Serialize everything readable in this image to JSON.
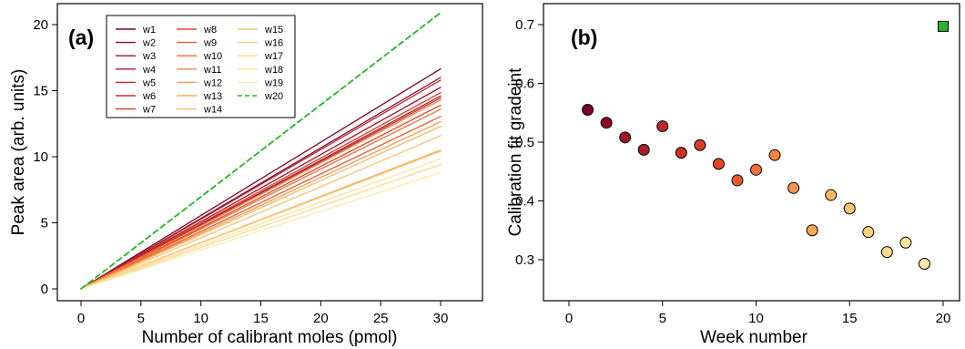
{
  "colors": {
    "w1": "#7a0127",
    "w2": "#8b0a28",
    "w3": "#9c1429",
    "w4": "#ad1d2b",
    "w5": "#bd262c",
    "w6": "#cc302a",
    "w7": "#d83b28",
    "w8": "#e24526",
    "w9": "#e85a2c",
    "w10": "#ed6f36",
    "w11": "#f18441",
    "w12": "#f4974c",
    "w13": "#f6a757",
    "w14": "#f8b663",
    "w15": "#f9c372",
    "w16": "#fbcf81",
    "w17": "#fcd990",
    "w18": "#fde29d",
    "w19": "#fee9aa",
    "w20": "#22b822"
  },
  "chart_data": [
    {
      "type": "line",
      "panel_tag": "(a)",
      "xlabel": "Number of calibrant moles  (pmol)",
      "ylabel": "Peak area  (arb. units)",
      "xlim": [
        0,
        30
      ],
      "ylim": [
        0,
        20
      ],
      "xticks": [
        0,
        5,
        10,
        15,
        20,
        25,
        30
      ],
      "yticks": [
        0,
        5,
        10,
        15,
        20
      ],
      "grid": false,
      "legend_position": "top-left",
      "series": [
        {
          "name": "w1",
          "x": [
            0,
            30
          ],
          "y": [
            0,
            16.65
          ],
          "style": "solid"
        },
        {
          "name": "w2",
          "x": [
            0,
            30
          ],
          "y": [
            0,
            16.0
          ],
          "style": "solid"
        },
        {
          "name": "w3",
          "x": [
            0,
            30
          ],
          "y": [
            0,
            15.25
          ],
          "style": "solid"
        },
        {
          "name": "w4",
          "x": [
            0,
            30
          ],
          "y": [
            0,
            14.6
          ],
          "style": "solid"
        },
        {
          "name": "w5",
          "x": [
            0,
            30
          ],
          "y": [
            0,
            15.8
          ],
          "style": "solid"
        },
        {
          "name": "w6",
          "x": [
            0,
            30
          ],
          "y": [
            0,
            14.45
          ],
          "style": "solid"
        },
        {
          "name": "w7",
          "x": [
            0,
            30
          ],
          "y": [
            0,
            14.85
          ],
          "style": "solid"
        },
        {
          "name": "w8",
          "x": [
            0,
            30
          ],
          "y": [
            0,
            13.9
          ],
          "style": "solid"
        },
        {
          "name": "w9",
          "x": [
            0,
            30
          ],
          "y": [
            0,
            13.05
          ],
          "style": "solid"
        },
        {
          "name": "w10",
          "x": [
            0,
            30
          ],
          "y": [
            0,
            13.6
          ],
          "style": "solid"
        },
        {
          "name": "w11",
          "x": [
            0,
            30
          ],
          "y": [
            0,
            14.3
          ],
          "style": "solid"
        },
        {
          "name": "w12",
          "x": [
            0,
            30
          ],
          "y": [
            0,
            12.65
          ],
          "style": "solid"
        },
        {
          "name": "w13",
          "x": [
            0,
            30
          ],
          "y": [
            0,
            10.5
          ],
          "style": "solid"
        },
        {
          "name": "w14",
          "x": [
            0,
            30
          ],
          "y": [
            0,
            12.3
          ],
          "style": "solid"
        },
        {
          "name": "w15",
          "x": [
            0,
            30
          ],
          "y": [
            0,
            11.6
          ],
          "style": "solid"
        },
        {
          "name": "w16",
          "x": [
            0,
            30
          ],
          "y": [
            0,
            10.4
          ],
          "style": "solid"
        },
        {
          "name": "w17",
          "x": [
            0,
            30
          ],
          "y": [
            0,
            9.4
          ],
          "style": "solid"
        },
        {
          "name": "w18",
          "x": [
            0,
            30
          ],
          "y": [
            0,
            9.85
          ],
          "style": "solid"
        },
        {
          "name": "w19",
          "x": [
            0,
            30
          ],
          "y": [
            0,
            8.8
          ],
          "style": "solid"
        },
        {
          "name": "w20",
          "x": [
            0,
            30
          ],
          "y": [
            0,
            20.9
          ],
          "style": "dashed"
        }
      ]
    },
    {
      "type": "scatter",
      "panel_tag": "(b)",
      "xlabel": "Week number",
      "ylabel": "Calibration fit gradeint",
      "xlim": [
        0,
        20
      ],
      "ylim": [
        0.3,
        0.7
      ],
      "xticks": [
        0,
        5,
        10,
        15,
        20
      ],
      "yticks": [
        0.3,
        0.4,
        0.5,
        0.6,
        0.7
      ],
      "grid": false,
      "points": [
        {
          "x": 1,
          "y": 0.555,
          "series": "w1",
          "marker": "circle"
        },
        {
          "x": 2,
          "y": 0.533,
          "series": "w2",
          "marker": "circle"
        },
        {
          "x": 3,
          "y": 0.508,
          "series": "w3",
          "marker": "circle"
        },
        {
          "x": 4,
          "y": 0.487,
          "series": "w4",
          "marker": "circle"
        },
        {
          "x": 5,
          "y": 0.527,
          "series": "w5",
          "marker": "circle"
        },
        {
          "x": 6,
          "y": 0.482,
          "series": "w6",
          "marker": "circle"
        },
        {
          "x": 7,
          "y": 0.495,
          "series": "w7",
          "marker": "circle"
        },
        {
          "x": 8,
          "y": 0.463,
          "series": "w8",
          "marker": "circle"
        },
        {
          "x": 9,
          "y": 0.435,
          "series": "w9",
          "marker": "circle"
        },
        {
          "x": 10,
          "y": 0.453,
          "series": "w10",
          "marker": "circle"
        },
        {
          "x": 11,
          "y": 0.478,
          "series": "w11",
          "marker": "circle"
        },
        {
          "x": 12,
          "y": 0.422,
          "series": "w12",
          "marker": "circle"
        },
        {
          "x": 13,
          "y": 0.35,
          "series": "w13",
          "marker": "circle"
        },
        {
          "x": 14,
          "y": 0.41,
          "series": "w14",
          "marker": "circle"
        },
        {
          "x": 15,
          "y": 0.387,
          "series": "w15",
          "marker": "circle"
        },
        {
          "x": 16,
          "y": 0.347,
          "series": "w16",
          "marker": "circle"
        },
        {
          "x": 17,
          "y": 0.313,
          "series": "w17",
          "marker": "circle"
        },
        {
          "x": 18,
          "y": 0.329,
          "series": "w18",
          "marker": "circle"
        },
        {
          "x": 19,
          "y": 0.293,
          "series": "w19",
          "marker": "circle"
        },
        {
          "x": 20,
          "y": 0.697,
          "series": "w20",
          "marker": "square"
        }
      ]
    }
  ]
}
